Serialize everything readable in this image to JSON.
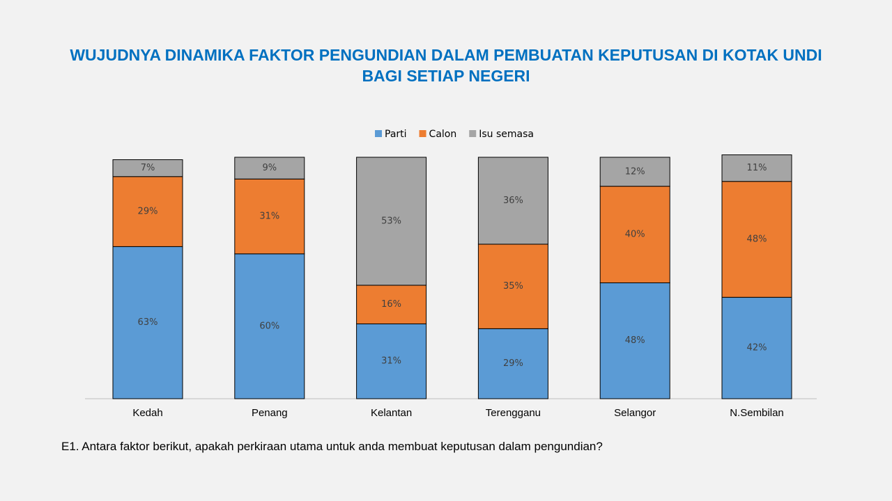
{
  "chart_data": {
    "type": "bar",
    "stacked": true,
    "title": "WUJUDNYA DINAMIKA FAKTOR PENGUNDIAN DALAM PEMBUATAN KEPUTUSAN DI KOTAK UNDI BAGI SETIAP NEGERI",
    "categories": [
      "Kedah",
      "Penang",
      "Kelantan",
      "Terengganu",
      "Selangor",
      "N.Sembilan"
    ],
    "series": [
      {
        "name": "Parti",
        "color": "#5b9bd5",
        "values": [
          63,
          60,
          31,
          29,
          48,
          42
        ],
        "value_labels": [
          "63%",
          "60%",
          "31%",
          "29%",
          "48%",
          "42%"
        ]
      },
      {
        "name": "Calon",
        "color": "#ed7d31",
        "values": [
          29,
          31,
          16,
          35,
          40,
          48
        ],
        "value_labels": [
          "29%",
          "31%",
          "16%",
          "35%",
          "40%",
          "48%"
        ]
      },
      {
        "name": "Isu semasa",
        "color": "#a5a5a5",
        "values": [
          7,
          9,
          53,
          36,
          12,
          11
        ],
        "value_labels": [
          "7%",
          "9%",
          "53%",
          "36%",
          "12%",
          "11%"
        ]
      }
    ],
    "ylim": [
      0,
      100
    ],
    "legend": "top",
    "note": "E1. Antara faktor berikut, apakah perkiraan utama untuk anda membuat keputusan dalam pengundian?"
  }
}
